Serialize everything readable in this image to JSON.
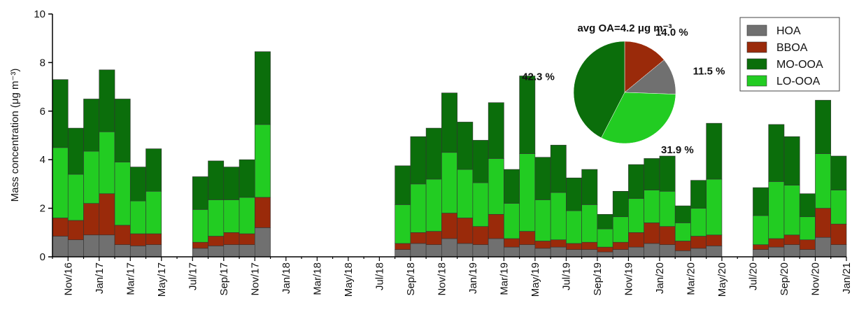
{
  "chart_data": [
    {
      "type": "bar",
      "ylabel": "Mass concentration (μg m⁻³)",
      "categories": [
        null,
        "Nov/16",
        null,
        "Jan/17",
        null,
        "Mar/17",
        null,
        "May/17",
        null,
        "Jul/17",
        null,
        "Sep/17",
        null,
        "Nov/17",
        null,
        "Jan/18",
        null,
        "Mar/18",
        null,
        "May/18",
        null,
        "Jul/18",
        null,
        "Sep/18",
        null,
        "Nov/18",
        null,
        "Jan/19",
        null,
        "Mar/19",
        null,
        "May/19",
        null,
        "Jul/19",
        null,
        "Sep/19",
        null,
        "Nov/19",
        null,
        "Jan/20",
        null,
        "Mar/20",
        null,
        "May/20",
        null,
        "Jul/20",
        null,
        "Sep/20",
        null,
        "Nov/20",
        null,
        "Jan/21"
      ],
      "series": [
        {
          "name": "HOA",
          "color": "#707070",
          "values": [
            0.85,
            0.7,
            0.9,
            0.9,
            0.5,
            0.45,
            0.5,
            null,
            null,
            0.35,
            0.45,
            0.5,
            0.5,
            1.2,
            null,
            null,
            null,
            null,
            null,
            null,
            null,
            null,
            0.3,
            0.55,
            0.5,
            0.75,
            0.55,
            0.5,
            0.75,
            0.4,
            0.5,
            0.35,
            0.4,
            0.3,
            0.3,
            0.2,
            0.3,
            0.4,
            0.55,
            0.5,
            0.25,
            0.35,
            0.45,
            null,
            null,
            0.3,
            0.4,
            0.5,
            0.3,
            0.8,
            0.5,
            null
          ]
        },
        {
          "name": "BBOA",
          "color": "#9a2a0a",
          "values": [
            0.75,
            0.8,
            1.3,
            1.7,
            0.8,
            0.5,
            0.45,
            null,
            null,
            0.25,
            0.4,
            0.5,
            0.45,
            1.25,
            null,
            null,
            null,
            null,
            null,
            null,
            null,
            null,
            0.25,
            0.45,
            0.55,
            1.05,
            1.05,
            0.75,
            1.0,
            0.35,
            0.55,
            0.3,
            0.3,
            0.25,
            0.3,
            0.2,
            0.3,
            0.6,
            0.85,
            0.75,
            0.4,
            0.5,
            0.45,
            null,
            null,
            0.2,
            0.35,
            0.4,
            0.4,
            1.2,
            0.85,
            null
          ]
        },
        {
          "name": "MO-OOA",
          "color": "#0b6e0b",
          "values": [
            2.8,
            1.9,
            2.15,
            2.55,
            2.6,
            1.4,
            1.75,
            null,
            null,
            1.35,
            1.6,
            1.35,
            1.55,
            3.0,
            null,
            null,
            null,
            null,
            null,
            null,
            null,
            null,
            1.6,
            1.95,
            2.1,
            2.45,
            1.95,
            1.75,
            2.3,
            1.4,
            3.2,
            1.75,
            1.95,
            1.35,
            1.45,
            0.6,
            1.05,
            1.4,
            1.3,
            1.45,
            0.7,
            1.15,
            2.3,
            null,
            null,
            1.15,
            2.35,
            2.0,
            0.95,
            2.2,
            1.4,
            null
          ]
        },
        {
          "name": "LO-OOA",
          "color": "#22cc22",
          "values": [
            2.9,
            1.9,
            2.15,
            2.55,
            2.6,
            1.35,
            1.75,
            null,
            null,
            1.35,
            1.5,
            1.35,
            1.5,
            3.0,
            null,
            null,
            null,
            null,
            null,
            null,
            null,
            null,
            1.6,
            2.0,
            2.15,
            2.5,
            2.0,
            1.8,
            2.3,
            1.45,
            3.2,
            1.7,
            1.95,
            1.35,
            1.55,
            0.75,
            1.05,
            1.4,
            1.35,
            1.45,
            0.75,
            1.15,
            2.3,
            null,
            null,
            1.2,
            2.35,
            2.05,
            0.95,
            2.25,
            1.4,
            null
          ]
        }
      ],
      "ylim": [
        0,
        10
      ],
      "yticks": [
        0,
        2,
        4,
        6,
        8,
        10
      ]
    },
    {
      "type": "pie",
      "title": "avg OA=4.2 μg m⁻³",
      "categories": [
        "HOA",
        "BBOA",
        "MO-OOA",
        "LO-OOA"
      ],
      "values": [
        11.5,
        14.0,
        42.3,
        31.9
      ],
      "value_labels": [
        "11.5 %",
        "14.0 %",
        "42.3 %",
        "31.9 %"
      ],
      "colors": [
        "#707070",
        "#9a2a0a",
        "#0b6e0b",
        "#22cc22"
      ]
    }
  ]
}
